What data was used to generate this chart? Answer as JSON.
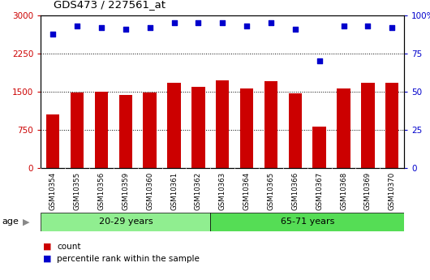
{
  "title": "GDS473 / 227561_at",
  "samples": [
    "GSM10354",
    "GSM10355",
    "GSM10356",
    "GSM10359",
    "GSM10360",
    "GSM10361",
    "GSM10362",
    "GSM10363",
    "GSM10364",
    "GSM10365",
    "GSM10366",
    "GSM10367",
    "GSM10368",
    "GSM10369",
    "GSM10370"
  ],
  "counts": [
    1050,
    1490,
    1500,
    1440,
    1490,
    1680,
    1600,
    1720,
    1570,
    1710,
    1470,
    820,
    1560,
    1670,
    1680
  ],
  "percentile_ranks": [
    88,
    93,
    92,
    91,
    92,
    95,
    95,
    95,
    93,
    95,
    91,
    70,
    93,
    93,
    92
  ],
  "bar_color": "#cc0000",
  "dot_color": "#0000cc",
  "ylim_left": [
    0,
    3000
  ],
  "ylim_right": [
    0,
    100
  ],
  "yticks_left": [
    0,
    750,
    1500,
    2250,
    3000
  ],
  "yticks_right": [
    0,
    25,
    50,
    75,
    100
  ],
  "group1_label": "20-29 years",
  "group2_label": "65-71 years",
  "group1_count": 7,
  "group2_count": 8,
  "age_label": "age",
  "legend_count_label": "count",
  "legend_pct_label": "percentile rank within the sample",
  "group1_bg_color": "#90ee90",
  "group2_bg_color": "#55dd55",
  "tick_area_color": "#c8c8c8",
  "background_color": "#ffffff"
}
